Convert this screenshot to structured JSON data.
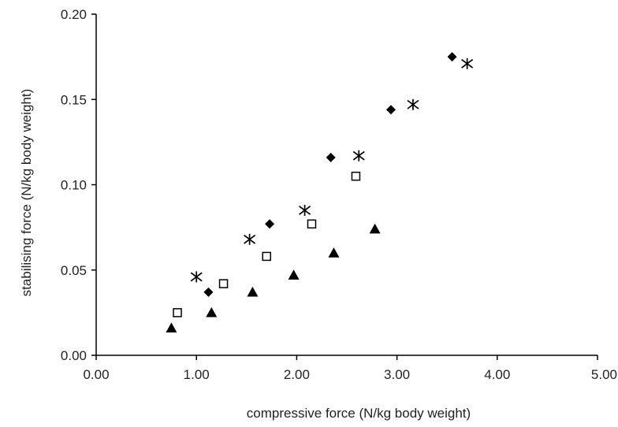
{
  "chart_data": {
    "type": "scatter",
    "title": "",
    "xlabel": "compressive force (N/kg body weight)",
    "ylabel": "stabilising force (N/kg body weight)",
    "xlim": [
      0,
      5
    ],
    "ylim": [
      0,
      0.2
    ],
    "x_ticks": [
      "0.00",
      "1.00",
      "2.00",
      "3.00",
      "4.00",
      "5.00"
    ],
    "y_ticks": [
      "0.00",
      "0.05",
      "0.10",
      "0.15",
      "0.20"
    ],
    "grid": false,
    "legend": "none",
    "series": [
      {
        "marker": "diamond",
        "color": "#000000",
        "x": [
          1.12,
          1.73,
          2.34,
          2.94,
          3.55
        ],
        "y": [
          0.037,
          0.077,
          0.116,
          0.144,
          0.175
        ]
      },
      {
        "marker": "asterisk",
        "color": "#000000",
        "x": [
          1.0,
          1.53,
          2.08,
          2.62,
          3.16,
          3.7
        ],
        "y": [
          0.046,
          0.068,
          0.085,
          0.117,
          0.147,
          0.171
        ]
      },
      {
        "marker": "open-square",
        "color": "#000000",
        "x": [
          0.81,
          1.27,
          1.7,
          2.15,
          2.59
        ],
        "y": [
          0.025,
          0.042,
          0.058,
          0.077,
          0.105
        ]
      },
      {
        "marker": "triangle",
        "color": "#000000",
        "x": [
          0.75,
          1.15,
          1.56,
          1.97,
          2.37,
          2.78
        ],
        "y": [
          0.016,
          0.025,
          0.037,
          0.047,
          0.06,
          0.074
        ]
      }
    ]
  }
}
